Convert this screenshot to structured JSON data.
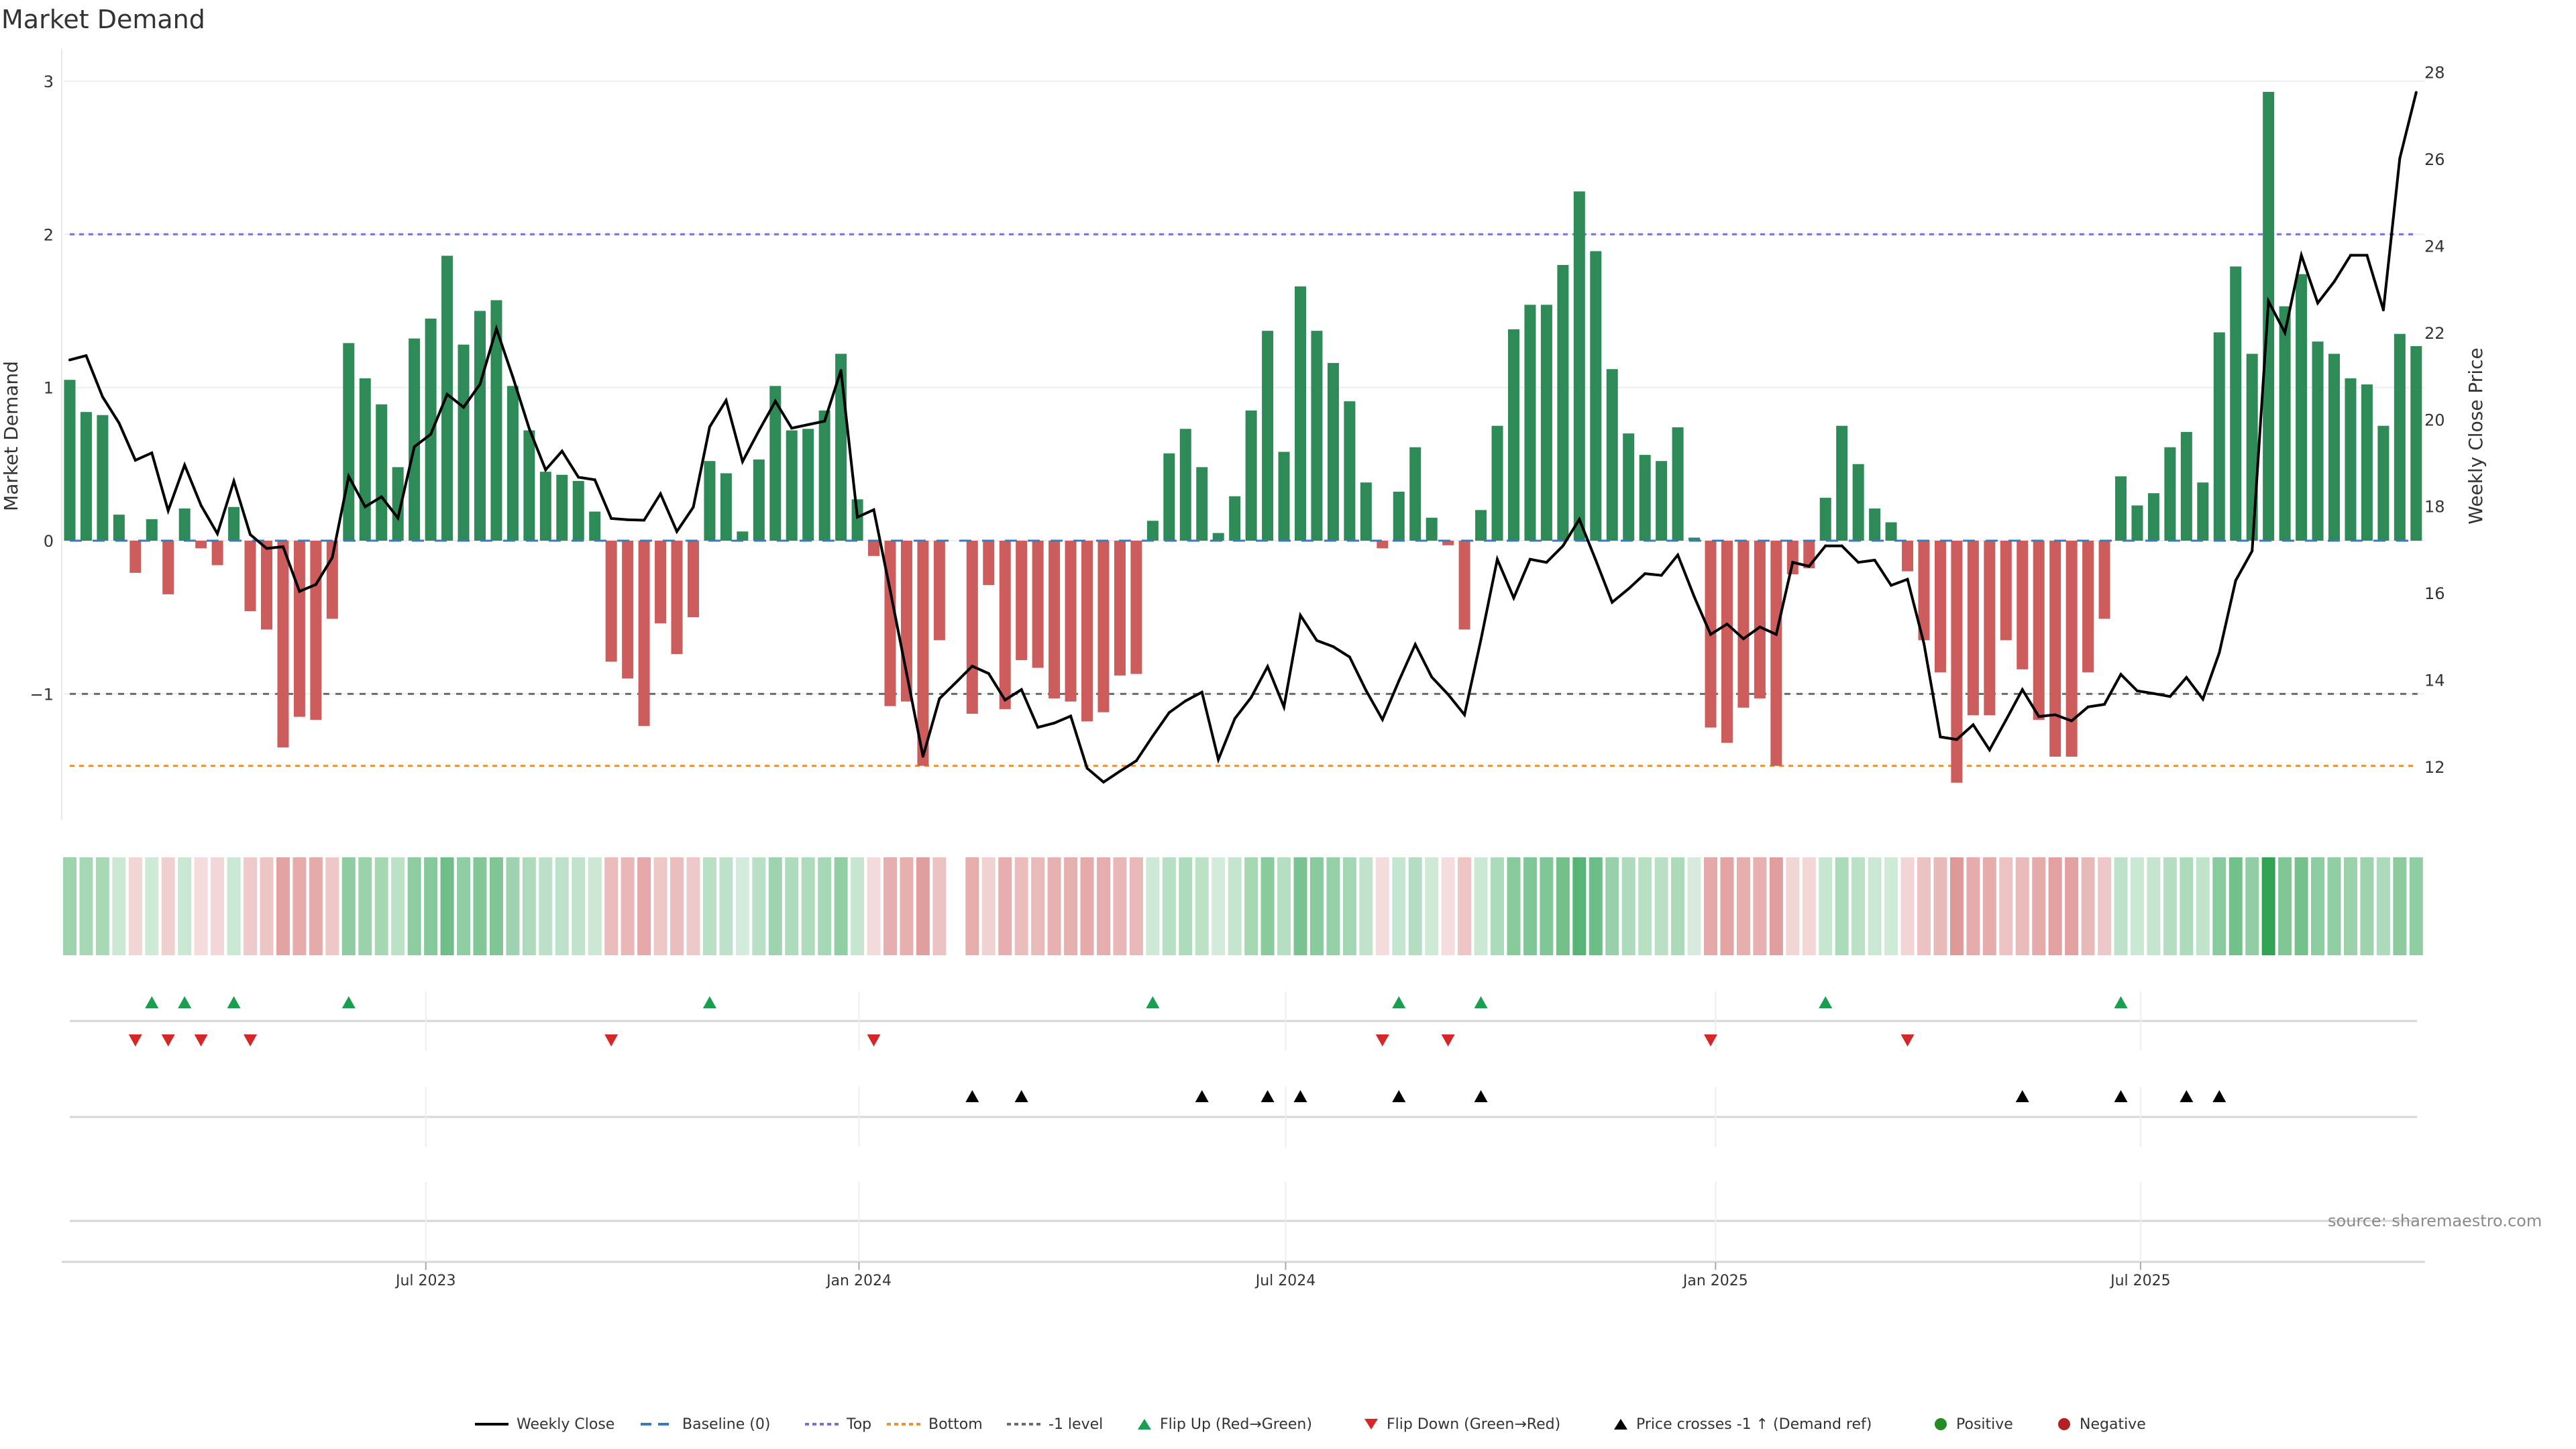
{
  "title": "Market Demand",
  "source": "source: sharemaestro.com",
  "chart_data": {
    "type": "bar",
    "title": "Market Demand",
    "xlabel": "",
    "ylabel": "Market Demand",
    "y2label": "Weekly Close Price",
    "x_unit": "week index (weekly bars)",
    "xlim": [
      0.51,
      144.54
    ],
    "ylim": [
      -1.8,
      3.21
    ],
    "y2lim": [
      10.86,
      28.53
    ],
    "grid": true,
    "y_ticks": [
      {
        "value": 3,
        "label": "3"
      },
      {
        "value": 2,
        "label": "2"
      },
      {
        "value": 1,
        "label": "1"
      },
      {
        "value": 0,
        "label": "0"
      },
      {
        "value": -1,
        "label": "−1"
      }
    ],
    "y2_ticks": [
      {
        "value": 28,
        "label": "28"
      },
      {
        "value": 26,
        "label": "26"
      },
      {
        "value": 24,
        "label": "24"
      },
      {
        "value": 22,
        "label": "22"
      },
      {
        "value": 20,
        "label": "20"
      },
      {
        "value": 18,
        "label": "18"
      },
      {
        "value": 16,
        "label": "16"
      },
      {
        "value": 14,
        "label": "14"
      },
      {
        "value": 12,
        "label": "12"
      }
    ],
    "x_ticks": [
      {
        "week": 22.7,
        "label": "Jul 2023"
      },
      {
        "week": 49.1,
        "label": "Jan 2024"
      },
      {
        "week": 75.1,
        "label": "Jul 2024"
      },
      {
        "week": 101.3,
        "label": "Jan 2025"
      },
      {
        "week": 127.2,
        "label": "Jul 2025"
      }
    ],
    "series": [
      {
        "name": "Market Demand",
        "type": "bar",
        "axis": "left",
        "values": [
          1.05,
          0.84,
          0.82,
          0.17,
          -0.21,
          0.14,
          -0.35,
          0.21,
          -0.05,
          -0.16,
          0.22,
          -0.46,
          -0.58,
          -1.35,
          -1.15,
          -1.17,
          -0.51,
          1.29,
          1.06,
          0.89,
          0.48,
          1.32,
          1.45,
          1.86,
          1.28,
          1.5,
          1.57,
          1.01,
          0.72,
          0.45,
          0.43,
          0.39,
          0.19,
          -0.79,
          -0.9,
          -1.21,
          -0.54,
          -0.74,
          -0.5,
          0.52,
          0.44,
          0.06,
          0.53,
          1.01,
          0.72,
          0.73,
          0.85,
          1.22,
          0.27,
          -0.1,
          -1.08,
          -1.05,
          -1.47,
          -0.65,
          null,
          -1.13,
          -0.29,
          -1.1,
          -0.78,
          -0.83,
          -1.03,
          -1.05,
          -1.18,
          -1.12,
          -0.88,
          -0.87,
          0.13,
          0.57,
          0.73,
          0.48,
          0.05,
          0.29,
          0.85,
          1.37,
          0.58,
          1.66,
          1.37,
          1.16,
          0.91,
          0.38,
          -0.05,
          0.32,
          0.61,
          0.15,
          -0.03,
          -0.58,
          0.2,
          0.75,
          1.38,
          1.54,
          1.54,
          1.8,
          2.28,
          1.89,
          1.12,
          0.7,
          0.56,
          0.52,
          0.74,
          0.02,
          -1.22,
          -1.32,
          -1.09,
          -1.03,
          -1.47,
          -0.22,
          -0.18,
          0.28,
          0.75,
          0.5,
          0.21,
          0.12,
          -0.2,
          -0.65,
          -0.86,
          -1.58,
          -1.14,
          -1.14,
          -0.65,
          -0.84,
          -1.17,
          -1.41,
          -1.41,
          -0.86,
          -0.51,
          0.42,
          0.23,
          0.31,
          0.61,
          0.71,
          0.38,
          1.36,
          1.79,
          1.22,
          2.93,
          1.53,
          1.74,
          1.3,
          1.22,
          1.06,
          1.02,
          0.75,
          1.35,
          1.27
        ]
      },
      {
        "name": "Weekly Close",
        "type": "line",
        "axis": "right",
        "values": [
          21.37,
          21.47,
          20.52,
          19.92,
          19.06,
          19.23,
          17.9,
          18.95,
          18.02,
          17.37,
          18.58,
          17.35,
          17.03,
          17.07,
          16.04,
          16.2,
          16.82,
          18.69,
          17.99,
          18.22,
          17.73,
          19.37,
          19.66,
          20.58,
          20.28,
          20.81,
          22.09,
          20.98,
          19.79,
          18.84,
          19.27,
          18.67,
          18.61,
          17.72,
          17.69,
          17.68,
          18.29,
          17.42,
          17.98,
          19.83,
          20.44,
          19.03,
          19.74,
          20.42,
          19.8,
          19.88,
          19.96,
          21.13,
          17.75,
          17.92,
          16.06,
          14.15,
          12.24,
          13.57,
          13.94,
          14.32,
          14.15,
          13.54,
          13.78,
          12.91,
          13.01,
          13.17,
          11.97,
          11.65,
          11.9,
          12.14,
          12.71,
          13.25,
          13.52,
          13.72,
          12.17,
          13.11,
          13.6,
          14.31,
          13.38,
          15.49,
          14.91,
          14.77,
          14.53,
          13.76,
          13.09,
          13.98,
          14.82,
          14.07,
          13.67,
          13.2,
          14.93,
          16.78,
          15.89,
          16.78,
          16.71,
          17.09,
          17.7,
          16.76,
          15.79,
          16.1,
          16.45,
          16.41,
          16.88,
          15.92,
          15.05,
          15.29,
          14.95,
          15.22,
          15.05,
          16.71,
          16.62,
          17.09,
          17.09,
          16.71,
          16.76,
          16.18,
          16.32,
          14.84,
          12.69,
          12.63,
          12.97,
          12.39,
          13.08,
          13.78,
          13.16,
          13.2,
          13.06,
          13.38,
          13.44,
          14.13,
          13.75,
          13.69,
          13.62,
          14.06,
          13.56,
          14.63,
          16.29,
          16.97,
          22.72,
          22.0,
          23.78,
          22.68,
          23.17,
          23.78,
          23.78,
          22.52,
          26.01,
          27.53
        ]
      }
    ],
    "reference_lines": [
      {
        "name": "Baseline (0)",
        "value": 0,
        "style": "dashed",
        "color": "#3a7ab8"
      },
      {
        "name": "Top",
        "value": 2,
        "style": "dotted",
        "color": "#7b6fd6"
      },
      {
        "name": "Bottom",
        "value": -1.47,
        "style": "dotted",
        "color": "#e8923a"
      },
      {
        "name": "-1 level",
        "value": -1,
        "style": "dotted",
        "color": "#6b6b6b"
      }
    ],
    "events": {
      "flip_up_weeks": [
        6,
        8,
        11,
        18,
        40,
        67,
        82,
        87,
        108,
        126
      ],
      "flip_down_weeks": [
        5,
        7,
        9,
        12,
        34,
        50,
        81,
        85,
        101,
        113
      ],
      "price_cross_weeks": [
        56,
        59,
        70,
        74,
        76,
        82,
        87,
        120,
        126,
        130,
        132
      ]
    },
    "heatmap": {
      "type": "heatmap",
      "source_series": "Market Demand",
      "scale": "abs-intensity"
    },
    "colors": {
      "positive_bar": "#2e8b57",
      "negative_bar": "#cd5c5c",
      "heat_positive": "#31a354",
      "heat_negative": "#cd5c5c",
      "price_line": "#000000",
      "flip_up": "#1a9e4f",
      "flip_down": "#d62728",
      "price_cross": "#000000",
      "positive_dot": "#228b22",
      "negative_dot": "#b22222"
    },
    "legend": {
      "position": "bottom",
      "items": [
        {
          "label": "Weekly Close",
          "icon": "solid-line",
          "color": "#000000"
        },
        {
          "label": "Baseline (0)",
          "icon": "dashed-line",
          "color": "#3a7ab8"
        },
        {
          "label": "Top",
          "icon": "dotted-line",
          "color": "#7b6fd6"
        },
        {
          "label": "Bottom",
          "icon": "dotted-line",
          "color": "#e8923a"
        },
        {
          "label": "-1 level",
          "icon": "dotted-line",
          "color": "#6b6b6b"
        },
        {
          "label": "Flip Up (Red→Green)",
          "icon": "triangle-up",
          "color": "#1a9e4f"
        },
        {
          "label": "Flip Down (Green→Red)",
          "icon": "triangle-down",
          "color": "#d62728"
        },
        {
          "label": "Price crosses -1 ↑ (Demand ref)",
          "icon": "triangle-up",
          "color": "#000000"
        },
        {
          "label": "Positive",
          "icon": "circle",
          "color": "#228b22"
        },
        {
          "label": "Negative",
          "icon": "circle",
          "color": "#b22222"
        }
      ]
    }
  }
}
